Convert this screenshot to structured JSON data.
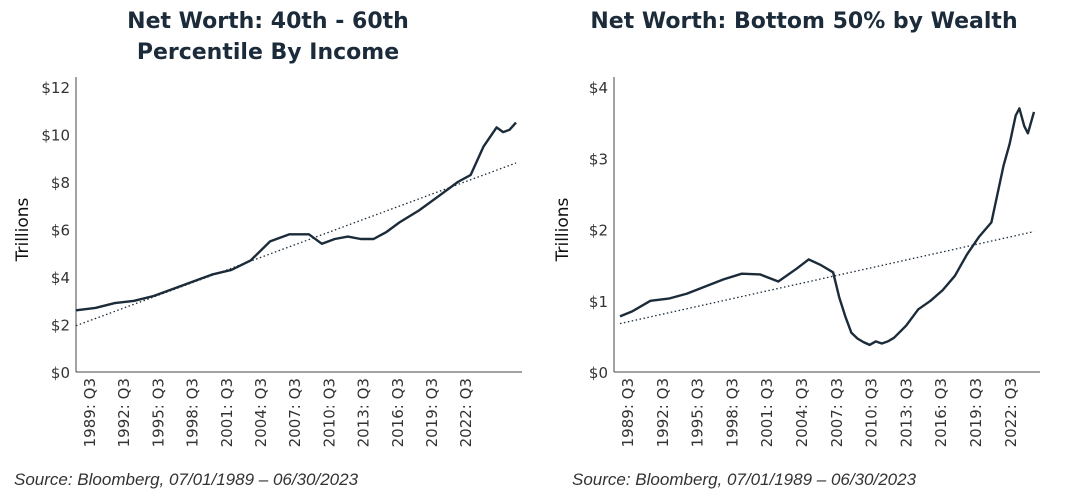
{
  "chart_data": [
    {
      "type": "line",
      "title_lines": [
        "Net Worth: 40th - 60th",
        "Percentile By Income"
      ],
      "ylabel": "Trillions",
      "ylim": [
        0,
        12
      ],
      "y_ticks": [
        "$0",
        "$2",
        "$4",
        "$6",
        "$8",
        "$10",
        "$12"
      ],
      "x_range": [
        1989.5,
        2023.5
      ],
      "x_ticks": [
        "1989: Q3",
        "1992: Q3",
        "1995: Q3",
        "1998: Q3",
        "2001: Q3",
        "2004: Q3",
        "2007: Q3",
        "2010: Q3",
        "2013: Q3",
        "2016: Q3",
        "2019: Q3",
        "2022: Q3"
      ],
      "series": [
        {
          "name": "Net Worth",
          "x": [
            1989.5,
            1991,
            1992.5,
            1994,
            1995.5,
            1997,
            1998.5,
            2000,
            2001.5,
            2003,
            2004.5,
            2006,
            2007.5,
            2008.5,
            2009.5,
            2010.5,
            2011.5,
            2012.5,
            2013.5,
            2014.5,
            2016,
            2017.5,
            2019,
            2020,
            2021,
            2022,
            2022.5,
            2023,
            2023.5
          ],
          "values": [
            2.6,
            2.7,
            2.9,
            3.0,
            3.2,
            3.5,
            3.8,
            4.1,
            4.3,
            4.7,
            5.5,
            5.8,
            5.8,
            5.4,
            5.6,
            5.7,
            5.6,
            5.6,
            5.9,
            6.3,
            6.8,
            7.4,
            8.0,
            8.3,
            9.5,
            10.3,
            10.1,
            10.2,
            10.5
          ]
        },
        {
          "name": "Trend",
          "style": "dotted",
          "x": [
            1989.5,
            2023.5
          ],
          "values": [
            1.95,
            8.8
          ]
        }
      ],
      "source": "Source: Bloomberg, 07/01/1989 – 06/30/2023"
    },
    {
      "type": "line",
      "title_lines": [
        "Net Worth: Bottom 50% by Wealth"
      ],
      "ylabel": "Trillions",
      "ylim": [
        0,
        4
      ],
      "y_ticks": [
        "$0",
        "$1",
        "$2",
        "$3",
        "$4"
      ],
      "x_range": [
        1989.5,
        2023.5
      ],
      "x_ticks": [
        "1989: Q3",
        "1992: Q3",
        "1995: Q3",
        "1998: Q3",
        "2001: Q3",
        "2004: Q3",
        "2007: Q3",
        "2010: Q3",
        "2013: Q3",
        "2016: Q3",
        "2019: Q3",
        "2022: Q3"
      ],
      "series": [
        {
          "name": "Net Worth",
          "x": [
            1989.5,
            1990.5,
            1992,
            1993.5,
            1995,
            1996.5,
            1998,
            1999.5,
            2001,
            2002.5,
            2004,
            2005,
            2006,
            2007,
            2007.5,
            2008,
            2008.5,
            2009,
            2009.5,
            2010,
            2010.5,
            2011,
            2011.5,
            2012,
            2013,
            2014,
            2015,
            2016,
            2017,
            2018,
            2019,
            2019.5,
            2020,
            2020.5,
            2021,
            2021.5,
            2022,
            2022.3,
            2022.7,
            2023,
            2023.5
          ],
          "values": [
            0.78,
            0.85,
            1.0,
            1.03,
            1.1,
            1.2,
            1.3,
            1.38,
            1.37,
            1.27,
            1.45,
            1.58,
            1.5,
            1.4,
            1.05,
            0.78,
            0.55,
            0.47,
            0.42,
            0.38,
            0.43,
            0.4,
            0.43,
            0.48,
            0.65,
            0.88,
            1.0,
            1.15,
            1.35,
            1.65,
            1.9,
            2.0,
            2.1,
            2.5,
            2.9,
            3.2,
            3.6,
            3.7,
            3.45,
            3.35,
            3.65
          ]
        },
        {
          "name": "Trend",
          "style": "dotted",
          "x": [
            1989.5,
            2023.5
          ],
          "values": [
            0.68,
            1.97
          ]
        }
      ],
      "source": "Source: Bloomberg, 07/01/1989 – 06/30/2023"
    }
  ],
  "colors": {
    "line": "#1b2b3a",
    "axis": "#444444",
    "trend": "#1b2b3a"
  }
}
